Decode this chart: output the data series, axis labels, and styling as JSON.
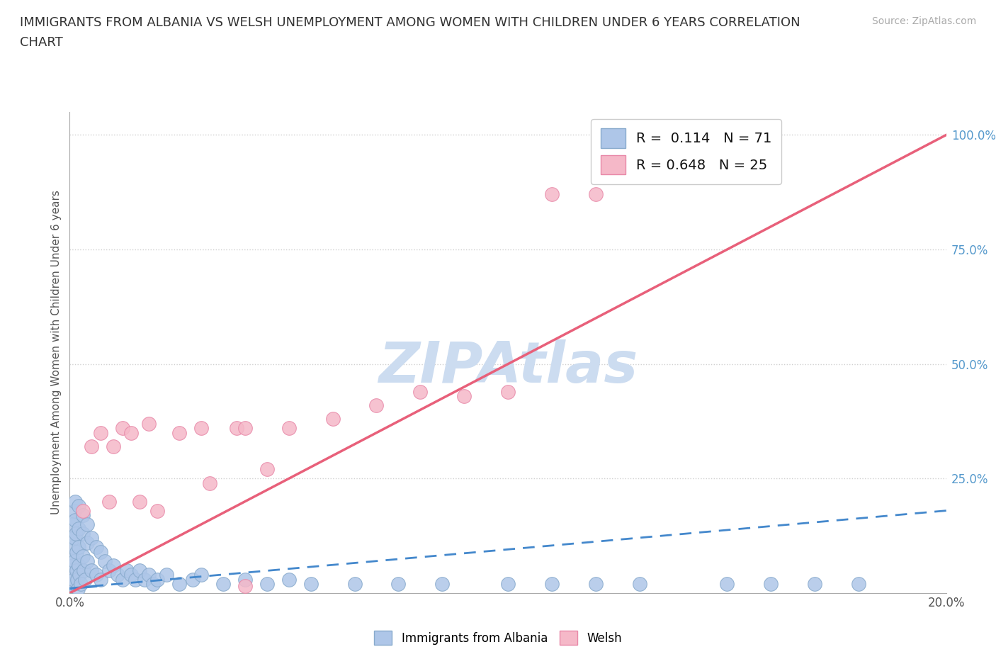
{
  "title_line1": "IMMIGRANTS FROM ALBANIA VS WELSH UNEMPLOYMENT AMONG WOMEN WITH CHILDREN UNDER 6 YEARS CORRELATION",
  "title_line2": "CHART",
  "source": "Source: ZipAtlas.com",
  "ylabel": "Unemployment Among Women with Children Under 6 years",
  "xlim": [
    0.0,
    0.2
  ],
  "ylim": [
    0.0,
    1.05
  ],
  "background_color": "#ffffff",
  "grid_color": "#d0d0d0",
  "watermark": "ZIPAtlas",
  "watermark_color": "#ccdcf0",
  "albania_color": "#aec6e8",
  "albanian_edge_color": "#88aacc",
  "welsh_color": "#f5b8c8",
  "welsh_edge_color": "#e888a8",
  "albania_R": 0.114,
  "albania_N": 71,
  "welsh_R": 0.648,
  "welsh_N": 25,
  "albania_trend_color": "#4488cc",
  "welsh_trend_color": "#e8607a",
  "albania_trend_x": [
    0.0,
    0.005,
    0.2
  ],
  "albania_trend_y": [
    0.01,
    0.02,
    0.18
  ],
  "welsh_trend_x": [
    0.0,
    0.2
  ],
  "welsh_trend_y": [
    0.0,
    1.0
  ],
  "albania_points_x": [
    0.0002,
    0.0003,
    0.0004,
    0.0005,
    0.0006,
    0.0007,
    0.0008,
    0.0009,
    0.001,
    0.001,
    0.001,
    0.0012,
    0.0013,
    0.0014,
    0.0015,
    0.0016,
    0.0017,
    0.0018,
    0.002,
    0.002,
    0.002,
    0.002,
    0.0022,
    0.0025,
    0.003,
    0.003,
    0.003,
    0.0032,
    0.0035,
    0.004,
    0.004,
    0.004,
    0.005,
    0.005,
    0.006,
    0.006,
    0.007,
    0.007,
    0.008,
    0.009,
    0.01,
    0.011,
    0.012,
    0.013,
    0.014,
    0.015,
    0.016,
    0.017,
    0.018,
    0.019,
    0.02,
    0.022,
    0.025,
    0.028,
    0.03,
    0.035,
    0.04,
    0.045,
    0.05,
    0.055,
    0.065,
    0.075,
    0.085,
    0.1,
    0.11,
    0.12,
    0.13,
    0.15,
    0.16,
    0.17,
    0.18
  ],
  "albania_points_y": [
    0.02,
    0.05,
    0.08,
    0.12,
    0.15,
    0.1,
    0.06,
    0.03,
    0.18,
    0.12,
    0.07,
    0.2,
    0.16,
    0.13,
    0.09,
    0.05,
    0.03,
    0.01,
    0.19,
    0.14,
    0.1,
    0.06,
    0.04,
    0.02,
    0.17,
    0.13,
    0.08,
    0.05,
    0.03,
    0.15,
    0.11,
    0.07,
    0.12,
    0.05,
    0.1,
    0.04,
    0.09,
    0.03,
    0.07,
    0.05,
    0.06,
    0.04,
    0.03,
    0.05,
    0.04,
    0.03,
    0.05,
    0.03,
    0.04,
    0.02,
    0.03,
    0.04,
    0.02,
    0.03,
    0.04,
    0.02,
    0.03,
    0.02,
    0.03,
    0.02,
    0.02,
    0.02,
    0.02,
    0.02,
    0.02,
    0.02,
    0.02,
    0.02,
    0.02,
    0.02,
    0.02
  ],
  "welsh_points_x": [
    0.003,
    0.005,
    0.007,
    0.009,
    0.01,
    0.012,
    0.014,
    0.016,
    0.018,
    0.02,
    0.025,
    0.03,
    0.032,
    0.038,
    0.04,
    0.045,
    0.05,
    0.06,
    0.07,
    0.08,
    0.09,
    0.1,
    0.11,
    0.12,
    0.04
  ],
  "welsh_points_y": [
    0.18,
    0.32,
    0.35,
    0.2,
    0.32,
    0.36,
    0.35,
    0.2,
    0.37,
    0.18,
    0.35,
    0.36,
    0.24,
    0.36,
    0.36,
    0.27,
    0.36,
    0.38,
    0.41,
    0.44,
    0.43,
    0.44,
    0.87,
    0.87,
    0.015
  ]
}
